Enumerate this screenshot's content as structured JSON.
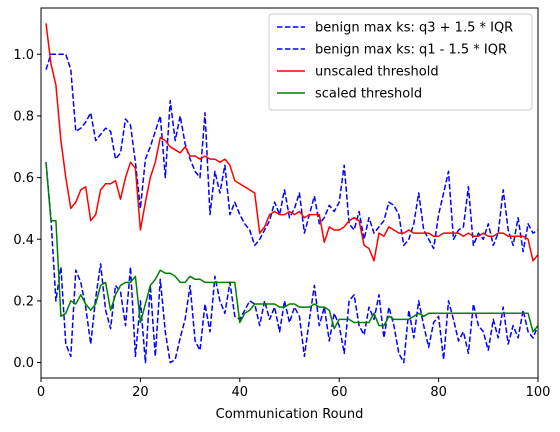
{
  "chart_data": {
    "type": "line",
    "title": "",
    "xlabel": "Communication Round",
    "ylabel": "",
    "xlim": [
      0,
      100
    ],
    "ylim": [
      -0.05,
      1.15
    ],
    "xticks": [
      0,
      20,
      40,
      60,
      80,
      100
    ],
    "yticks": [
      0.0,
      0.2,
      0.4,
      0.6,
      0.8,
      1.0
    ],
    "grid": false,
    "legend_position": "top-right",
    "series": [
      {
        "name": "benign max ks: q3 + 1.5 * IQR",
        "color": "#0000ff",
        "dash": "dashed",
        "x": [
          1,
          2,
          3,
          4,
          5,
          6,
          7,
          8,
          9,
          10,
          11,
          12,
          13,
          14,
          15,
          16,
          17,
          18,
          19,
          20,
          21,
          22,
          23,
          24,
          25,
          26,
          27,
          28,
          29,
          30,
          31,
          32,
          33,
          34,
          35,
          36,
          37,
          38,
          39,
          40,
          41,
          42,
          43,
          44,
          45,
          46,
          47,
          48,
          49,
          50,
          51,
          52,
          53,
          54,
          55,
          56,
          57,
          58,
          59,
          60,
          61,
          62,
          63,
          64,
          65,
          66,
          67,
          68,
          69,
          70,
          71,
          72,
          73,
          74,
          75,
          76,
          77,
          78,
          79,
          80,
          81,
          82,
          83,
          84,
          85,
          86,
          87,
          88,
          89,
          90,
          91,
          92,
          93,
          94,
          95,
          96,
          97,
          98,
          99,
          100
        ],
        "y": [
          0.95,
          1.0,
          1.0,
          1.0,
          1.0,
          0.95,
          0.75,
          0.76,
          0.78,
          0.81,
          0.72,
          0.74,
          0.76,
          0.75,
          0.66,
          0.68,
          0.79,
          0.77,
          0.65,
          0.5,
          0.66,
          0.7,
          0.75,
          0.8,
          0.6,
          0.85,
          0.72,
          0.8,
          0.71,
          0.66,
          0.62,
          0.6,
          0.81,
          0.48,
          0.62,
          0.55,
          0.64,
          0.48,
          0.52,
          0.48,
          0.45,
          0.43,
          0.38,
          0.4,
          0.43,
          0.46,
          0.52,
          0.48,
          0.56,
          0.47,
          0.5,
          0.55,
          0.42,
          0.48,
          0.54,
          0.45,
          0.47,
          0.51,
          0.49,
          0.52,
          0.64,
          0.45,
          0.43,
          0.49,
          0.4,
          0.47,
          0.42,
          0.44,
          0.46,
          0.52,
          0.51,
          0.48,
          0.38,
          0.4,
          0.45,
          0.55,
          0.43,
          0.4,
          0.37,
          0.48,
          0.55,
          0.62,
          0.4,
          0.43,
          0.44,
          0.57,
          0.38,
          0.42,
          0.4,
          0.45,
          0.38,
          0.42,
          0.56,
          0.43,
          0.38,
          0.47,
          0.36,
          0.45,
          0.42,
          0.43
        ]
      },
      {
        "name": "benign max ks: q1 - 1.5 * IQR",
        "color": "#0000ff",
        "dash": "dashed",
        "x": [
          1,
          2,
          3,
          4,
          5,
          6,
          7,
          8,
          9,
          10,
          11,
          12,
          13,
          14,
          15,
          16,
          17,
          18,
          19,
          20,
          21,
          22,
          23,
          24,
          25,
          26,
          27,
          28,
          29,
          30,
          31,
          32,
          33,
          34,
          35,
          36,
          37,
          38,
          39,
          40,
          41,
          42,
          43,
          44,
          45,
          46,
          47,
          48,
          49,
          50,
          51,
          52,
          53,
          54,
          55,
          56,
          57,
          58,
          59,
          60,
          61,
          62,
          63,
          64,
          65,
          66,
          67,
          68,
          69,
          70,
          71,
          72,
          73,
          74,
          75,
          76,
          77,
          78,
          79,
          80,
          81,
          82,
          83,
          84,
          85,
          86,
          87,
          88,
          89,
          90,
          91,
          92,
          93,
          94,
          95,
          96,
          97,
          98,
          99,
          100
        ],
        "y": [
          0.65,
          0.47,
          0.2,
          0.31,
          0.06,
          0.02,
          0.3,
          0.26,
          0.18,
          0.06,
          0.21,
          0.32,
          0.17,
          0.11,
          0.25,
          0.23,
          0.12,
          0.31,
          0.02,
          0.2,
          0.0,
          0.25,
          0.02,
          0.27,
          0.1,
          0.0,
          0.01,
          0.08,
          0.14,
          0.25,
          0.07,
          0.04,
          0.19,
          0.1,
          0.28,
          0.2,
          0.16,
          0.26,
          0.15,
          0.14,
          0.17,
          0.2,
          0.19,
          0.12,
          0.2,
          0.14,
          0.18,
          0.1,
          0.2,
          0.13,
          0.18,
          0.15,
          0.02,
          0.14,
          0.25,
          0.12,
          0.18,
          0.07,
          0.16,
          0.12,
          0.03,
          0.2,
          0.22,
          0.12,
          0.09,
          0.18,
          0.14,
          0.22,
          0.08,
          0.18,
          0.12,
          0.03,
          0.0,
          0.17,
          0.08,
          0.2,
          0.12,
          0.05,
          0.13,
          0.15,
          0.01,
          0.2,
          0.14,
          0.07,
          0.1,
          0.03,
          0.19,
          0.12,
          0.1,
          0.04,
          0.14,
          0.08,
          0.18,
          0.06,
          0.12,
          0.08,
          0.17,
          0.1,
          0.08,
          0.12
        ]
      },
      {
        "name": "unscaled threshold",
        "color": "#ff0000",
        "dash": "solid",
        "x": [
          1,
          2,
          3,
          4,
          5,
          6,
          7,
          8,
          9,
          10,
          11,
          12,
          13,
          14,
          15,
          16,
          17,
          18,
          19,
          20,
          21,
          22,
          23,
          24,
          25,
          26,
          27,
          28,
          29,
          30,
          31,
          32,
          33,
          34,
          35,
          36,
          37,
          38,
          39,
          40,
          41,
          42,
          43,
          44,
          45,
          46,
          47,
          48,
          49,
          50,
          51,
          52,
          53,
          54,
          55,
          56,
          57,
          58,
          59,
          60,
          61,
          62,
          63,
          64,
          65,
          66,
          67,
          68,
          69,
          70,
          71,
          72,
          73,
          74,
          75,
          76,
          77,
          78,
          79,
          80,
          81,
          82,
          83,
          84,
          85,
          86,
          87,
          88,
          89,
          90,
          91,
          92,
          93,
          94,
          95,
          96,
          97,
          98,
          99,
          100
        ],
        "y": [
          1.1,
          0.97,
          0.9,
          0.72,
          0.6,
          0.5,
          0.52,
          0.56,
          0.57,
          0.46,
          0.48,
          0.56,
          0.58,
          0.58,
          0.59,
          0.53,
          0.6,
          0.65,
          0.63,
          0.43,
          0.52,
          0.6,
          0.65,
          0.73,
          0.72,
          0.7,
          0.69,
          0.68,
          0.7,
          0.67,
          0.67,
          0.66,
          0.67,
          0.66,
          0.66,
          0.65,
          0.66,
          0.64,
          0.59,
          0.58,
          0.57,
          0.56,
          0.55,
          0.42,
          0.44,
          0.48,
          0.49,
          0.48,
          0.48,
          0.49,
          0.48,
          0.49,
          0.47,
          0.48,
          0.48,
          0.48,
          0.39,
          0.44,
          0.43,
          0.43,
          0.44,
          0.46,
          0.47,
          0.46,
          0.38,
          0.37,
          0.33,
          0.42,
          0.41,
          0.44,
          0.43,
          0.42,
          0.42,
          0.43,
          0.42,
          0.42,
          0.42,
          0.42,
          0.41,
          0.41,
          0.42,
          0.42,
          0.42,
          0.42,
          0.41,
          0.42,
          0.41,
          0.41,
          0.42,
          0.41,
          0.41,
          0.42,
          0.42,
          0.41,
          0.41,
          0.41,
          0.41,
          0.4,
          0.33,
          0.35
        ]
      },
      {
        "name": "scaled threshold",
        "color": "#008000",
        "dash": "solid",
        "x": [
          1,
          2,
          3,
          4,
          5,
          6,
          7,
          8,
          9,
          10,
          11,
          12,
          13,
          14,
          15,
          16,
          17,
          18,
          19,
          20,
          21,
          22,
          23,
          24,
          25,
          26,
          27,
          28,
          29,
          30,
          31,
          32,
          33,
          34,
          35,
          36,
          37,
          38,
          39,
          40,
          41,
          42,
          43,
          44,
          45,
          46,
          47,
          48,
          49,
          50,
          51,
          52,
          53,
          54,
          55,
          56,
          57,
          58,
          59,
          60,
          61,
          62,
          63,
          64,
          65,
          66,
          67,
          68,
          69,
          70,
          71,
          72,
          73,
          74,
          75,
          76,
          77,
          78,
          79,
          80,
          81,
          82,
          83,
          84,
          85,
          86,
          87,
          88,
          89,
          90,
          91,
          92,
          93,
          94,
          95,
          96,
          97,
          98,
          99,
          100
        ],
        "y": [
          0.65,
          0.46,
          0.46,
          0.15,
          0.16,
          0.2,
          0.19,
          0.22,
          0.19,
          0.17,
          0.19,
          0.25,
          0.26,
          0.17,
          0.22,
          0.25,
          0.26,
          0.26,
          0.28,
          0.13,
          0.19,
          0.25,
          0.27,
          0.3,
          0.29,
          0.29,
          0.28,
          0.26,
          0.26,
          0.28,
          0.27,
          0.27,
          0.26,
          0.26,
          0.26,
          0.26,
          0.26,
          0.26,
          0.26,
          0.13,
          0.16,
          0.17,
          0.19,
          0.19,
          0.19,
          0.19,
          0.19,
          0.18,
          0.18,
          0.19,
          0.19,
          0.18,
          0.18,
          0.18,
          0.19,
          0.18,
          0.18,
          0.17,
          0.11,
          0.14,
          0.14,
          0.14,
          0.13,
          0.13,
          0.13,
          0.13,
          0.16,
          0.12,
          0.12,
          0.15,
          0.14,
          0.14,
          0.14,
          0.14,
          0.15,
          0.16,
          0.15,
          0.16,
          0.16,
          0.16,
          0.16,
          0.16,
          0.16,
          0.16,
          0.16,
          0.16,
          0.16,
          0.16,
          0.16,
          0.16,
          0.16,
          0.16,
          0.16,
          0.16,
          0.16,
          0.16,
          0.16,
          0.16,
          0.1,
          0.12
        ]
      }
    ]
  }
}
